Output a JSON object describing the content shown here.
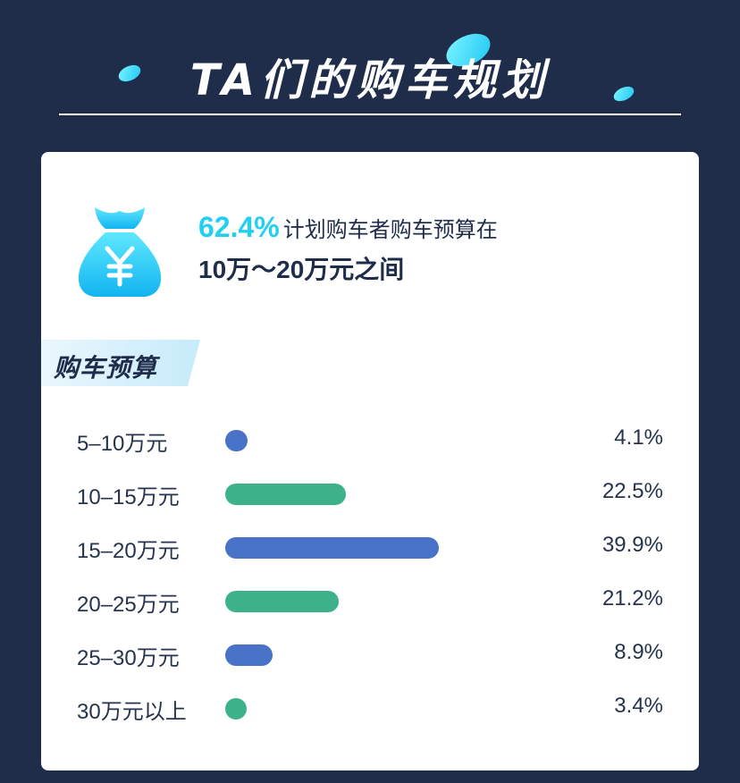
{
  "header": {
    "title": "TA们的购车规划"
  },
  "summary": {
    "percent": "62.4%",
    "text_line1": "计划购车者购车预算在",
    "text_line2": "10万～20万元之间"
  },
  "section": {
    "label": "购车预算"
  },
  "colors": {
    "blue": "#4872c6",
    "green": "#3db28a",
    "accent": "#21d0f0",
    "bg": "#1f2d4a"
  },
  "chart_data": {
    "type": "bar",
    "orientation": "horizontal",
    "title": "购车预算",
    "categories": [
      "5–10万元",
      "10–15万元",
      "15–20万元",
      "20–25万元",
      "25–30万元",
      "30万元以上"
    ],
    "values": [
      4.1,
      22.5,
      39.9,
      21.2,
      8.9,
      3.4
    ],
    "labels": [
      "4.1%",
      "22.5%",
      "39.9%",
      "21.2%",
      "8.9%",
      "3.4%"
    ],
    "colors": [
      "#4872c6",
      "#3db28a",
      "#4872c6",
      "#3db28a",
      "#4872c6",
      "#3db28a"
    ],
    "unit": "%",
    "xlim": [
      0,
      40
    ],
    "grid": false,
    "legend": "none"
  }
}
